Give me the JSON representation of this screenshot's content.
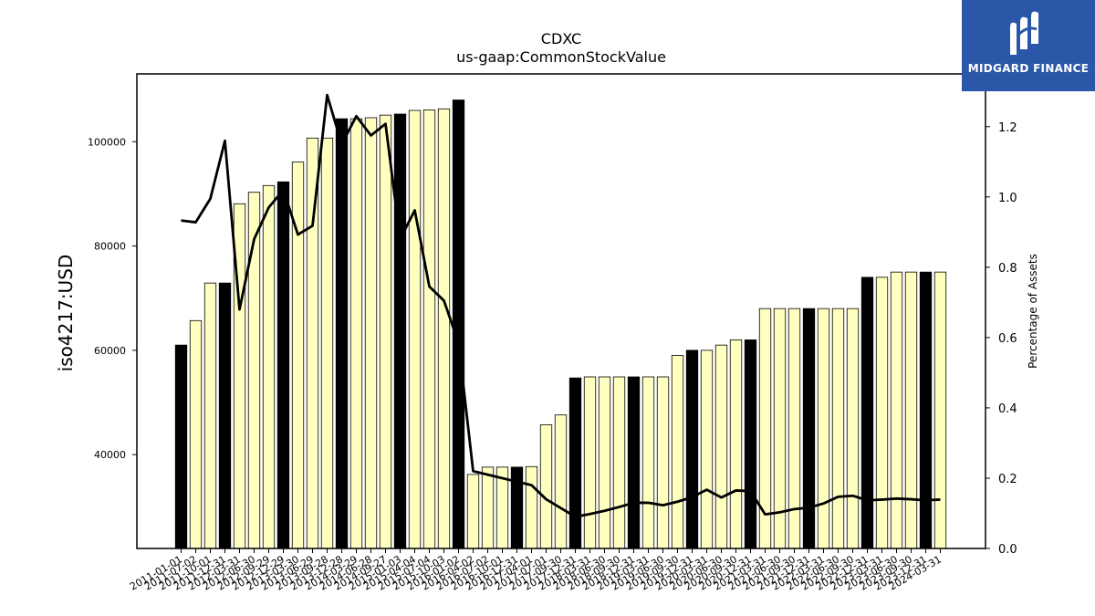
{
  "chart_data": {
    "type": "bar",
    "title": "CDXC",
    "subtitle": "us-gaap:CommonStockValue",
    "ylabel": "iso4217:USD",
    "y2label": "Percentage of Assets",
    "ylim": [
      22000,
      113000
    ],
    "y2lim": [
      0.0,
      1.35
    ],
    "yticks": [
      40000,
      60000,
      80000,
      100000
    ],
    "y2ticks": [
      0.0,
      0.2,
      0.4,
      0.6,
      0.8,
      1.0,
      1.2
    ],
    "grid": false,
    "categories": [
      "2011-01-01",
      "2011-07-02",
      "2011-10-01",
      "2011-12-31",
      "2012-03-31",
      "2012-06-30",
      "2012-09-29",
      "2012-12-29",
      "2013-03-30",
      "2013-06-29",
      "2013-09-28",
      "2013-12-28",
      "2014-03-29",
      "2014-06-28",
      "2014-09-27",
      "2015-01-03",
      "2015-04-04",
      "2015-07-04",
      "2015-10-03",
      "2016-01-02",
      "2016-04-02",
      "2016-07-02",
      "2016-10-01",
      "2016-12-31",
      "2017-04-01",
      "2017-07-01",
      "2017-09-30",
      "2017-12-31",
      "2018-03-31",
      "2018-06-30",
      "2018-09-30",
      "2018-12-31",
      "2019-03-31",
      "2019-06-30",
      "2019-09-30",
      "2019-12-31",
      "2020-03-31",
      "2020-06-30",
      "2020-09-30",
      "2020-12-31",
      "2021-03-31",
      "2021-06-30",
      "2021-09-30",
      "2021-12-31",
      "2022-03-31",
      "2022-06-30",
      "2022-09-30",
      "2022-12-31",
      "2023-03-31",
      "2023-06-30",
      "2023-09-30",
      "2023-12-31",
      "2024-03-31"
    ],
    "series": [
      {
        "type": "bar",
        "values": [
          61000,
          65700,
          72900,
          72900,
          88100,
          90300,
          91600,
          92300,
          96100,
          100700,
          100700,
          104400,
          104400,
          104600,
          105100,
          105300,
          106000,
          106100,
          106300,
          108000,
          36200,
          37600,
          37600,
          37600,
          37700,
          45700,
          47600,
          54700,
          54900,
          54900,
          54900,
          54900,
          54900,
          54900,
          59000,
          60000,
          60000,
          61000,
          62000,
          62000,
          68000,
          68000,
          68000,
          68000,
          68000,
          68000,
          68000,
          74000,
          74000,
          75000,
          75000,
          75000,
          75000
        ],
        "annual": [
          true,
          false,
          false,
          true,
          false,
          false,
          false,
          true,
          false,
          false,
          false,
          true,
          false,
          false,
          false,
          true,
          false,
          false,
          false,
          true,
          false,
          false,
          false,
          true,
          false,
          false,
          false,
          true,
          false,
          false,
          false,
          true,
          false,
          false,
          false,
          true,
          false,
          false,
          false,
          true,
          false,
          false,
          false,
          true,
          false,
          false,
          false,
          true,
          false,
          false,
          false,
          true,
          false
        ],
        "color_fill": "#ffffc0",
        "color_annual": "#000000"
      },
      {
        "type": "line",
        "axis": "right",
        "values": [
          0.933,
          0.928,
          0.995,
          1.16,
          0.68,
          0.88,
          0.97,
          1.02,
          0.893,
          0.918,
          1.29,
          1.15,
          1.23,
          1.175,
          1.208,
          0.88,
          0.962,
          0.745,
          0.705,
          0.585,
          0.22,
          0.21,
          0.2,
          0.19,
          0.18,
          0.14,
          0.115,
          0.09,
          0.098,
          0.107,
          0.118,
          0.13,
          0.13,
          0.123,
          0.133,
          0.146,
          0.167,
          0.145,
          0.165,
          0.163,
          0.097,
          0.103,
          0.112,
          0.116,
          0.128,
          0.147,
          0.15,
          0.137,
          0.139,
          0.142,
          0.14,
          0.137,
          0.139
        ],
        "color": "#000000"
      }
    ]
  },
  "logo": {
    "text": "MIDGARD FINANCE"
  }
}
